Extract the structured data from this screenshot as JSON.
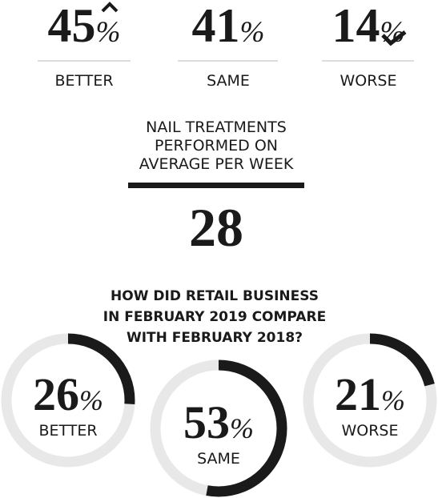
{
  "top_stats": [
    {
      "value": 45,
      "unit": "%",
      "label": "BETTER"
    },
    {
      "value": 41,
      "unit": "%",
      "label": "SAME"
    },
    {
      "value": 14,
      "unit": "%",
      "label": "WORSE"
    }
  ],
  "average": {
    "title_lines": [
      "NAIL TREATMENTS",
      "PERFORMED ON",
      "AVERAGE PER WEEK"
    ],
    "value": 28
  },
  "retail": {
    "question_lines": [
      "HOW DID RETAIL BUSINESS",
      "IN FEBRUARY 2019 COMPARE",
      "WITH FEBRUARY 2018?"
    ],
    "rings": [
      {
        "value": 26,
        "unit": "%",
        "label": "BETTER"
      },
      {
        "value": 53,
        "unit": "%",
        "label": "SAME"
      },
      {
        "value": 21,
        "unit": "%",
        "label": "WORSE"
      }
    ]
  }
}
